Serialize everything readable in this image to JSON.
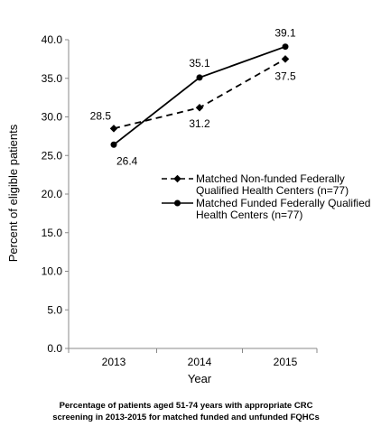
{
  "chart_data": {
    "type": "line",
    "x": [
      "2013",
      "2014",
      "2015"
    ],
    "xlabel": "Year",
    "ylabel": "Percent of eligible patients",
    "ylim": [
      0,
      40
    ],
    "yticks": [
      "0.0",
      "5.0",
      "10.0",
      "15.0",
      "20.0",
      "25.0",
      "30.0",
      "35.0",
      "40.0"
    ],
    "grid": false,
    "legend_position": "right",
    "series": [
      {
        "key": "nonfunded",
        "legend": [
          "Matched Non-funded Federally",
          "Qualified Health Centers (n=77)"
        ],
        "values": [
          28.5,
          31.2,
          37.5
        ],
        "labels": [
          "28.5",
          "31.2",
          "37.5"
        ],
        "line_style": "dashed",
        "marker": "diamond",
        "color": "#000000"
      },
      {
        "key": "funded",
        "legend": [
          "Matched Funded Federally Qualified",
          "Health Centers  (n=77)"
        ],
        "values": [
          26.4,
          35.1,
          39.1
        ],
        "labels": [
          "26.4",
          "35.1",
          "39.1"
        ],
        "line_style": "solid",
        "marker": "circle",
        "color": "#000000"
      }
    ]
  },
  "caption": {
    "line1": "Percentage of patients aged 51-74 years with appropriate CRC",
    "line2": "screening in 2013-2015 for matched funded and unfunded FQHCs"
  }
}
